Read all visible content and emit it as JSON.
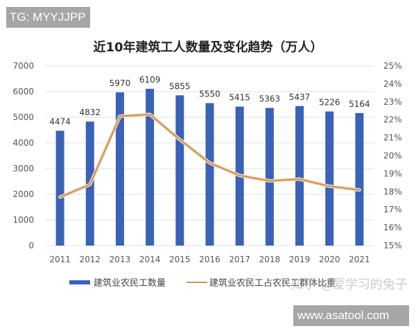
{
  "watermarks": {
    "top_left": "TG: MYYJJPP",
    "bottom_right": "www.asatool.com",
    "overlay": "知乎 @爱学习的兔子"
  },
  "colors": {
    "bar": "#3a62b8",
    "line": "#c9955c",
    "grid": "#e2e2e2",
    "axis_text": "#555555"
  },
  "chart_data": {
    "type": "bar+line",
    "title": "近10年建筑工人数量及变化趋势（万人）",
    "categories": [
      "2011",
      "2012",
      "2013",
      "2014",
      "2015",
      "2016",
      "2017",
      "2018",
      "2019",
      "2020",
      "2021"
    ],
    "series": [
      {
        "name": "建筑业农民工数量",
        "type": "bar",
        "axis": "left",
        "values": [
          4474,
          4832,
          5970,
          6109,
          5855,
          5550,
          5415,
          5363,
          5437,
          5226,
          5164
        ]
      },
      {
        "name": "建筑业农民工占农民工群体比重",
        "type": "line",
        "axis": "right",
        "unit": "%",
        "values": [
          17.7,
          18.4,
          22.2,
          22.3,
          20.9,
          19.6,
          18.9,
          18.6,
          18.7,
          18.3,
          18.1
        ]
      }
    ],
    "left_axis": {
      "ylim": [
        0,
        7000
      ],
      "ticks": [
        "0",
        "1000",
        "2000",
        "3000",
        "4000",
        "5000",
        "6000",
        "7000"
      ]
    },
    "right_axis": {
      "ylim": [
        15,
        25
      ],
      "ticks": [
        "15%",
        "16%",
        "17%",
        "18%",
        "19%",
        "20%",
        "21%",
        "22%",
        "23%",
        "24%",
        "25%"
      ]
    },
    "xlabel": "",
    "ylabel": "",
    "grid": true,
    "legend_position": "bottom"
  }
}
